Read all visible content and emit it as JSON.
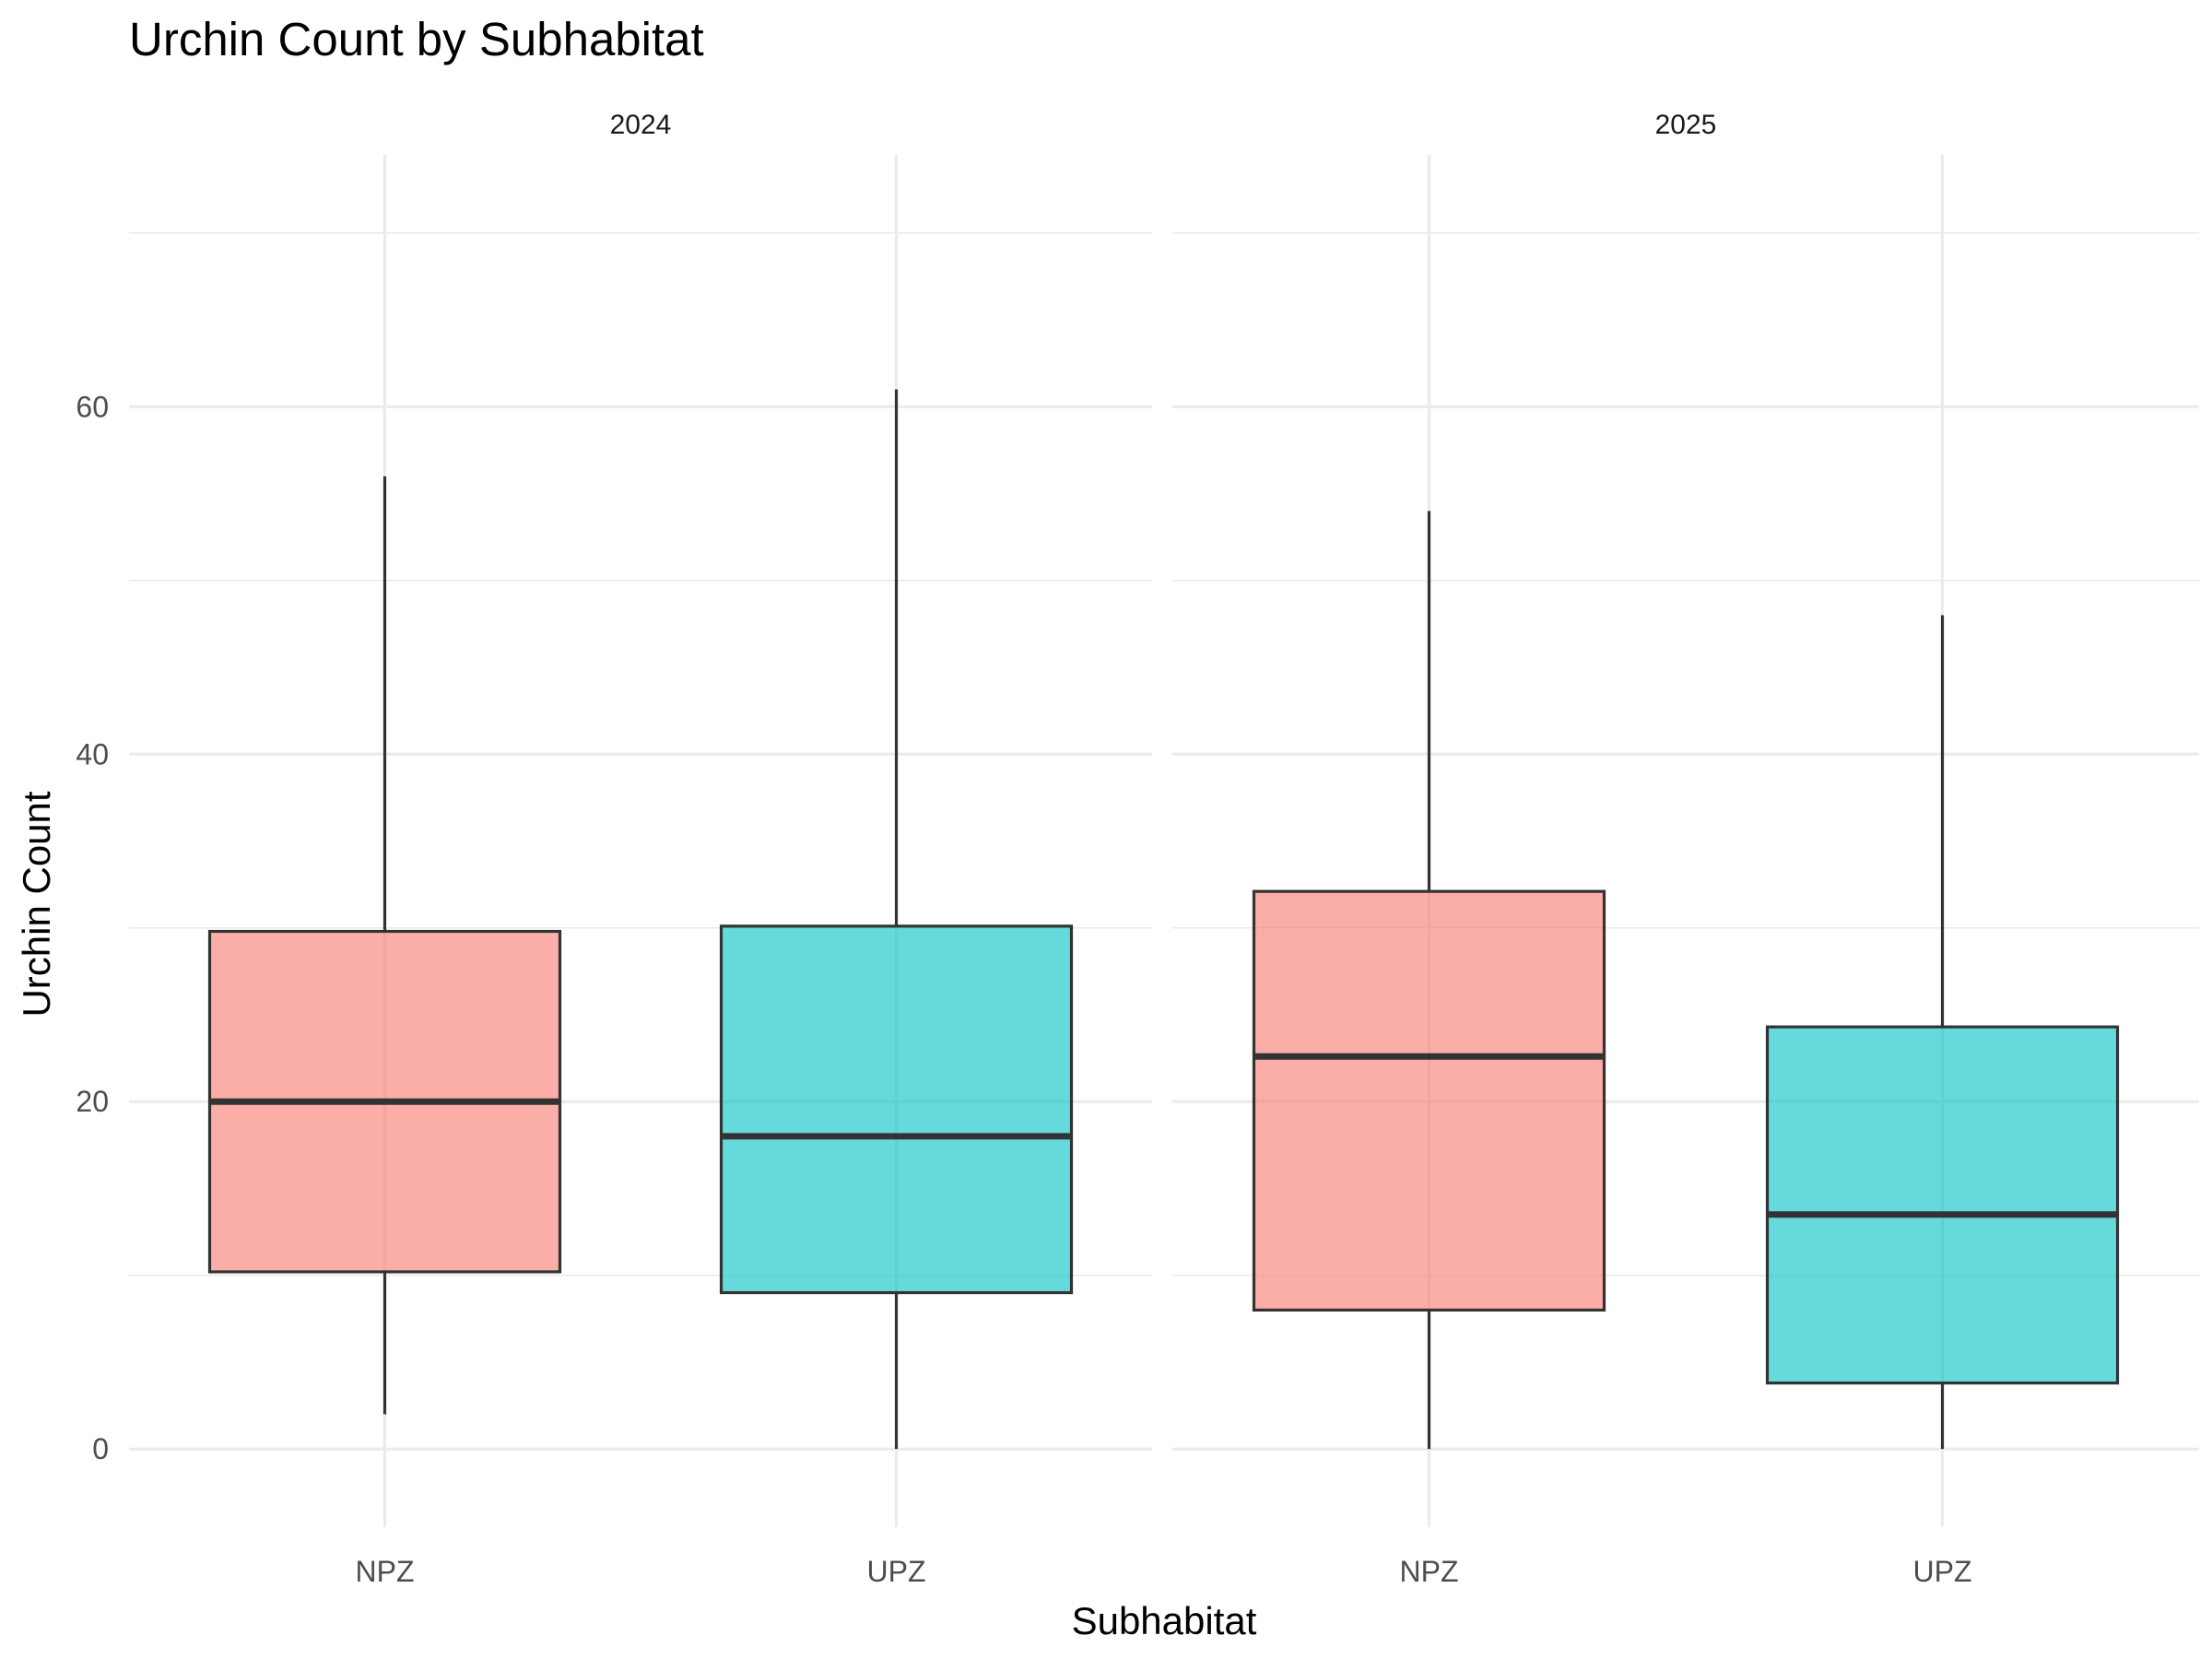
{
  "chart_data": {
    "type": "boxplot",
    "title": "Urchin Count by Subhabitat",
    "xlabel": "Subhabitat",
    "ylabel": "Urchin Count",
    "ylim": [
      -4.5,
      74.5
    ],
    "yticks": [
      0,
      20,
      40,
      60
    ],
    "y_minor_ticks": [
      10,
      30,
      50,
      70
    ],
    "grid": true,
    "legend": "none",
    "categories": [
      "NPZ",
      "UPZ"
    ],
    "colors": {
      "NPZ": "#F8766D",
      "UPZ": "#00BFC4"
    },
    "facets": [
      {
        "label": "2024",
        "boxes": [
          {
            "category": "NPZ",
            "min": 2,
            "q1": 10.2,
            "median": 20,
            "q3": 29.8,
            "max": 56
          },
          {
            "category": "UPZ",
            "min": 0,
            "q1": 9,
            "median": 18,
            "q3": 30.1,
            "max": 61
          }
        ]
      },
      {
        "label": "2025",
        "boxes": [
          {
            "category": "NPZ",
            "min": 0,
            "q1": 8,
            "median": 22.6,
            "q3": 32.1,
            "max": 54
          },
          {
            "category": "UPZ",
            "min": 0,
            "q1": 3.8,
            "median": 13.5,
            "q3": 24.3,
            "max": 48
          }
        ]
      }
    ]
  }
}
